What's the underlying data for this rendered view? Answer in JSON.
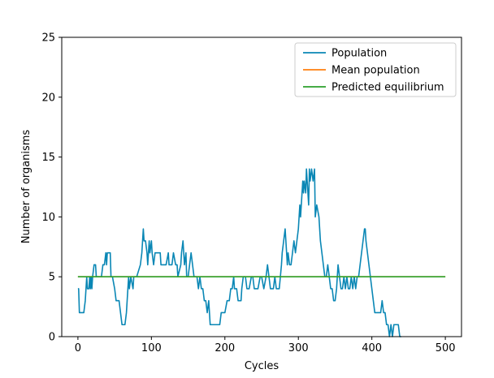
{
  "chart_data": {
    "type": "line",
    "title": "",
    "xlabel": "Cycles",
    "ylabel": "Number of organisms",
    "xlim": [
      -22,
      522
    ],
    "ylim": [
      0,
      25
    ],
    "xticks": [
      0,
      100,
      200,
      300,
      400,
      500
    ],
    "yticks": [
      0,
      5,
      10,
      15,
      20,
      25
    ],
    "grid": false,
    "legend_position": "top-right",
    "series": [
      {
        "name": "Population",
        "color": "#0a87b5",
        "points": [
          [
            0,
            4
          ],
          [
            1,
            4
          ],
          [
            2,
            2
          ],
          [
            8,
            2
          ],
          [
            10,
            3
          ],
          [
            11,
            4
          ],
          [
            12,
            5
          ],
          [
            13,
            4
          ],
          [
            15,
            4
          ],
          [
            16,
            5
          ],
          [
            17,
            4
          ],
          [
            18,
            5
          ],
          [
            19,
            4
          ],
          [
            20,
            5
          ],
          [
            22,
            6
          ],
          [
            24,
            6
          ],
          [
            25,
            5
          ],
          [
            27,
            5
          ],
          [
            30,
            5
          ],
          [
            32,
            5
          ],
          [
            34,
            6
          ],
          [
            36,
            6
          ],
          [
            38,
            7
          ],
          [
            39,
            6
          ],
          [
            40,
            7
          ],
          [
            44,
            7
          ],
          [
            45,
            5
          ],
          [
            47,
            5
          ],
          [
            50,
            4
          ],
          [
            52,
            3
          ],
          [
            56,
            3
          ],
          [
            58,
            2
          ],
          [
            60,
            1
          ],
          [
            64,
            1
          ],
          [
            66,
            2
          ],
          [
            67,
            3
          ],
          [
            68,
            4
          ],
          [
            69,
            5
          ],
          [
            70,
            4
          ],
          [
            72,
            5
          ],
          [
            75,
            4
          ],
          [
            76,
            5
          ],
          [
            80,
            5
          ],
          [
            85,
            6
          ],
          [
            87,
            7
          ],
          [
            88,
            8
          ],
          [
            89,
            9
          ],
          [
            90,
            8
          ],
          [
            92,
            8
          ],
          [
            94,
            7
          ],
          [
            95,
            6
          ],
          [
            96,
            7
          ],
          [
            97,
            8
          ],
          [
            98,
            7
          ],
          [
            100,
            8
          ],
          [
            101,
            7
          ],
          [
            103,
            6
          ],
          [
            105,
            7
          ],
          [
            112,
            7
          ],
          [
            113,
            6
          ],
          [
            120,
            6
          ],
          [
            123,
            7
          ],
          [
            124,
            6
          ],
          [
            128,
            6
          ],
          [
            130,
            7
          ],
          [
            133,
            6
          ],
          [
            135,
            6
          ],
          [
            136,
            5
          ],
          [
            140,
            6
          ],
          [
            141,
            7
          ],
          [
            143,
            8
          ],
          [
            145,
            6
          ],
          [
            147,
            7
          ],
          [
            148,
            5
          ],
          [
            150,
            5
          ],
          [
            152,
            6
          ],
          [
            154,
            7
          ],
          [
            156,
            6
          ],
          [
            158,
            5
          ],
          [
            160,
            5
          ],
          [
            162,
            5
          ],
          [
            164,
            4
          ],
          [
            166,
            5
          ],
          [
            168,
            4
          ],
          [
            170,
            4
          ],
          [
            172,
            3
          ],
          [
            174,
            3
          ],
          [
            176,
            2
          ],
          [
            178,
            3
          ],
          [
            179,
            2
          ],
          [
            180,
            1
          ],
          [
            184,
            1
          ],
          [
            190,
            1
          ],
          [
            193,
            1
          ],
          [
            195,
            2
          ],
          [
            200,
            2
          ],
          [
            203,
            3
          ],
          [
            206,
            3
          ],
          [
            208,
            4
          ],
          [
            210,
            4
          ],
          [
            212,
            5
          ],
          [
            213,
            4
          ],
          [
            216,
            4
          ],
          [
            218,
            3
          ],
          [
            222,
            3
          ],
          [
            223,
            4
          ],
          [
            225,
            5
          ],
          [
            228,
            5
          ],
          [
            230,
            4
          ],
          [
            233,
            4
          ],
          [
            236,
            5
          ],
          [
            238,
            5
          ],
          [
            240,
            4
          ],
          [
            245,
            4
          ],
          [
            248,
            5
          ],
          [
            250,
            5
          ],
          [
            253,
            4
          ],
          [
            256,
            5
          ],
          [
            258,
            6
          ],
          [
            260,
            5
          ],
          [
            262,
            4
          ],
          [
            266,
            4
          ],
          [
            268,
            5
          ],
          [
            270,
            4
          ],
          [
            274,
            4
          ],
          [
            277,
            6
          ],
          [
            278,
            7
          ],
          [
            280,
            8
          ],
          [
            282,
            9
          ],
          [
            285,
            6
          ],
          [
            286,
            7
          ],
          [
            288,
            6
          ],
          [
            290,
            6
          ],
          [
            292,
            7
          ],
          [
            294,
            8
          ],
          [
            296,
            7
          ],
          [
            298,
            8
          ],
          [
            300,
            9
          ],
          [
            302,
            11
          ],
          [
            303,
            10
          ],
          [
            305,
            12
          ],
          [
            306,
            13
          ],
          [
            307,
            12
          ],
          [
            308,
            13
          ],
          [
            310,
            12
          ],
          [
            311,
            14
          ],
          [
            312,
            13
          ],
          [
            313,
            12
          ],
          [
            314,
            11
          ],
          [
            315,
            14
          ],
          [
            316,
            13
          ],
          [
            318,
            14
          ],
          [
            320,
            13
          ],
          [
            322,
            14
          ],
          [
            323,
            10
          ],
          [
            325,
            11
          ],
          [
            328,
            10
          ],
          [
            330,
            8
          ],
          [
            332,
            7
          ],
          [
            334,
            6
          ],
          [
            336,
            5
          ],
          [
            338,
            5
          ],
          [
            340,
            6
          ],
          [
            342,
            5
          ],
          [
            344,
            4
          ],
          [
            346,
            4
          ],
          [
            348,
            3
          ],
          [
            350,
            3
          ],
          [
            352,
            4
          ],
          [
            353,
            5
          ],
          [
            354,
            6
          ],
          [
            356,
            5
          ],
          [
            358,
            4
          ],
          [
            360,
            4
          ],
          [
            362,
            5
          ],
          [
            364,
            4
          ],
          [
            366,
            5
          ],
          [
            368,
            4
          ],
          [
            370,
            4
          ],
          [
            372,
            5
          ],
          [
            374,
            4
          ],
          [
            376,
            5
          ],
          [
            378,
            4
          ],
          [
            380,
            5
          ],
          [
            382,
            5
          ],
          [
            384,
            6
          ],
          [
            386,
            7
          ],
          [
            388,
            8
          ],
          [
            390,
            9
          ],
          [
            391,
            9
          ],
          [
            392,
            8
          ],
          [
            394,
            7
          ],
          [
            396,
            6
          ],
          [
            398,
            5
          ],
          [
            400,
            4
          ],
          [
            402,
            3
          ],
          [
            404,
            2
          ],
          [
            412,
            2
          ],
          [
            414,
            3
          ],
          [
            416,
            2
          ],
          [
            418,
            2
          ],
          [
            420,
            1
          ],
          [
            422,
            1
          ],
          [
            424,
            0
          ],
          [
            426,
            1
          ],
          [
            428,
            0
          ],
          [
            430,
            1
          ],
          [
            436,
            1
          ],
          [
            438,
            0
          ],
          [
            440,
            0
          ]
        ]
      },
      {
        "name": "Mean population",
        "color": "#ff7f0e",
        "points": [
          [
            0,
            5
          ],
          [
            500,
            5
          ]
        ]
      },
      {
        "name": "Predicted equilibrium",
        "color": "#2ca02c",
        "points": [
          [
            0,
            5
          ],
          [
            500,
            5
          ]
        ]
      }
    ]
  }
}
